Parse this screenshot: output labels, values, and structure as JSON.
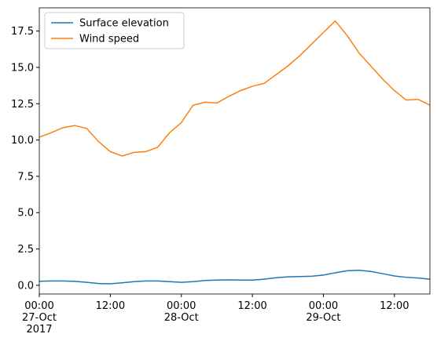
{
  "chart_data": {
    "type": "line",
    "x": [
      "2017-10-27 00:00",
      "2017-10-27 02:00",
      "2017-10-27 04:00",
      "2017-10-27 06:00",
      "2017-10-27 08:00",
      "2017-10-27 10:00",
      "2017-10-27 12:00",
      "2017-10-27 14:00",
      "2017-10-27 16:00",
      "2017-10-27 18:00",
      "2017-10-27 20:00",
      "2017-10-27 22:00",
      "2017-10-28 00:00",
      "2017-10-28 02:00",
      "2017-10-28 04:00",
      "2017-10-28 06:00",
      "2017-10-28 08:00",
      "2017-10-28 10:00",
      "2017-10-28 12:00",
      "2017-10-28 14:00",
      "2017-10-28 16:00",
      "2017-10-28 18:00",
      "2017-10-28 20:00",
      "2017-10-28 22:00",
      "2017-10-29 00:00",
      "2017-10-29 02:00",
      "2017-10-29 04:00",
      "2017-10-29 06:00",
      "2017-10-29 08:00",
      "2017-10-29 10:00",
      "2017-10-29 12:00",
      "2017-10-29 14:00",
      "2017-10-29 16:00",
      "2017-10-29 18:00"
    ],
    "series": [
      {
        "name": "Surface elevation",
        "color": "#1f77b4",
        "values": [
          0.28,
          0.3,
          0.3,
          0.27,
          0.2,
          0.12,
          0.1,
          0.17,
          0.25,
          0.3,
          0.3,
          0.25,
          0.2,
          0.25,
          0.33,
          0.36,
          0.37,
          0.36,
          0.36,
          0.42,
          0.52,
          0.58,
          0.6,
          0.62,
          0.7,
          0.86,
          1.0,
          1.03,
          0.95,
          0.8,
          0.64,
          0.55,
          0.5,
          0.42
        ]
      },
      {
        "name": "Wind speed",
        "color": "#ff7f0e",
        "values": [
          10.2,
          10.5,
          10.85,
          11.0,
          10.8,
          9.9,
          9.2,
          8.9,
          9.15,
          9.2,
          9.5,
          10.5,
          11.2,
          12.4,
          12.6,
          12.55,
          13.0,
          13.4,
          13.7,
          13.9,
          14.5,
          15.1,
          15.8,
          16.6,
          17.4,
          18.2,
          17.2,
          16.0,
          15.1,
          14.2,
          13.4,
          12.75,
          12.8,
          12.4
        ]
      }
    ],
    "xlim": [
      "2017-10-27 00:00",
      "2017-10-29 18:00"
    ],
    "xticks": [
      {
        "value": "2017-10-27 00:00",
        "label": "00:00\n27-Oct\n2017"
      },
      {
        "value": "2017-10-27 12:00",
        "label": "12:00"
      },
      {
        "value": "2017-10-28 00:00",
        "label": "00:00\n28-Oct"
      },
      {
        "value": "2017-10-28 12:00",
        "label": "12:00"
      },
      {
        "value": "2017-10-29 00:00",
        "label": "00:00\n29-Oct"
      },
      {
        "value": "2017-10-29 12:00",
        "label": "12:00"
      }
    ],
    "ylim": [
      -0.6,
      19.1
    ],
    "yticks": [
      {
        "value": 0,
        "label": "0.0"
      },
      {
        "value": 2.5,
        "label": "2.5"
      },
      {
        "value": 5,
        "label": "5.0"
      },
      {
        "value": 7.5,
        "label": "7.5"
      },
      {
        "value": 10,
        "label": "10.0"
      },
      {
        "value": 12.5,
        "label": "12.5"
      },
      {
        "value": 15,
        "label": "15.0"
      },
      {
        "value": 17.5,
        "label": "17.5"
      }
    ],
    "legend": "upper left"
  }
}
